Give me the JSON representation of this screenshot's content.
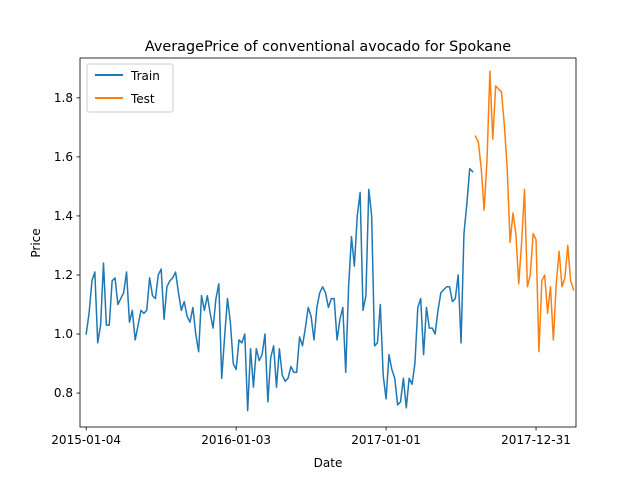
{
  "chart_data": {
    "type": "line",
    "title": "AveragePrice of conventional avocado for Spokane",
    "xlabel": "Date",
    "ylabel": "Price",
    "x_ticks": [
      "2015-01-04",
      "2016-01-03",
      "2017-01-01",
      "2017-12-31"
    ],
    "y_ticks": [
      "0.8",
      "1.0",
      "1.2",
      "1.4",
      "1.6",
      "1.8"
    ],
    "xlim": [
      "2014-12-20",
      "2018-04-07"
    ],
    "ylim": [
      0.685,
      1.935
    ],
    "grid": false,
    "legend_position": "top-left",
    "series": [
      {
        "name": "Train",
        "color": "#1f77b4",
        "points": [
          [
            "2015-01-04",
            1.0
          ],
          [
            "2015-01-11",
            1.07
          ],
          [
            "2015-01-18",
            1.18
          ],
          [
            "2015-01-25",
            1.21
          ],
          [
            "2015-02-01",
            0.97
          ],
          [
            "2015-02-08",
            1.03
          ],
          [
            "2015-02-15",
            1.24
          ],
          [
            "2015-02-22",
            1.03
          ],
          [
            "2015-03-01",
            1.03
          ],
          [
            "2015-03-08",
            1.18
          ],
          [
            "2015-03-15",
            1.19
          ],
          [
            "2015-03-22",
            1.1
          ],
          [
            "2015-03-29",
            1.12
          ],
          [
            "2015-04-05",
            1.14
          ],
          [
            "2015-04-12",
            1.21
          ],
          [
            "2015-04-19",
            1.04
          ],
          [
            "2015-04-26",
            1.08
          ],
          [
            "2015-05-03",
            0.98
          ],
          [
            "2015-05-10",
            1.03
          ],
          [
            "2015-05-17",
            1.08
          ],
          [
            "2015-05-24",
            1.07
          ],
          [
            "2015-05-31",
            1.08
          ],
          [
            "2015-06-07",
            1.19
          ],
          [
            "2015-06-14",
            1.13
          ],
          [
            "2015-06-21",
            1.12
          ],
          [
            "2015-06-28",
            1.2
          ],
          [
            "2015-07-05",
            1.22
          ],
          [
            "2015-07-12",
            1.05
          ],
          [
            "2015-07-19",
            1.16
          ],
          [
            "2015-07-26",
            1.18
          ],
          [
            "2015-08-02",
            1.19
          ],
          [
            "2015-08-09",
            1.21
          ],
          [
            "2015-08-16",
            1.14
          ],
          [
            "2015-08-23",
            1.08
          ],
          [
            "2015-08-30",
            1.11
          ],
          [
            "2015-09-06",
            1.06
          ],
          [
            "2015-09-13",
            1.04
          ],
          [
            "2015-09-20",
            1.09
          ],
          [
            "2015-09-27",
            1.0
          ],
          [
            "2015-10-04",
            0.94
          ],
          [
            "2015-10-11",
            1.13
          ],
          [
            "2015-10-18",
            1.08
          ],
          [
            "2015-10-25",
            1.13
          ],
          [
            "2015-11-01",
            1.07
          ],
          [
            "2015-11-08",
            1.02
          ],
          [
            "2015-11-15",
            1.12
          ],
          [
            "2015-11-22",
            1.17
          ],
          [
            "2015-11-29",
            0.85
          ],
          [
            "2015-12-06",
            0.99
          ],
          [
            "2015-12-13",
            1.12
          ],
          [
            "2015-12-20",
            1.04
          ],
          [
            "2015-12-27",
            0.9
          ],
          [
            "2016-01-03",
            0.88
          ],
          [
            "2016-01-10",
            0.98
          ],
          [
            "2016-01-17",
            0.97
          ],
          [
            "2016-01-24",
            1.0
          ],
          [
            "2016-01-31",
            0.74
          ],
          [
            "2016-02-07",
            0.95
          ],
          [
            "2016-02-14",
            0.82
          ],
          [
            "2016-02-21",
            0.95
          ],
          [
            "2016-02-28",
            0.91
          ],
          [
            "2016-03-06",
            0.93
          ],
          [
            "2016-03-13",
            1.0
          ],
          [
            "2016-03-20",
            0.77
          ],
          [
            "2016-03-27",
            0.92
          ],
          [
            "2016-04-03",
            0.96
          ],
          [
            "2016-04-10",
            0.82
          ],
          [
            "2016-04-17",
            0.95
          ],
          [
            "2016-04-24",
            0.86
          ],
          [
            "2016-05-01",
            0.84
          ],
          [
            "2016-05-08",
            0.85
          ],
          [
            "2016-05-15",
            0.89
          ],
          [
            "2016-05-22",
            0.87
          ],
          [
            "2016-05-29",
            0.87
          ],
          [
            "2016-06-05",
            0.99
          ],
          [
            "2016-06-12",
            0.96
          ],
          [
            "2016-06-19",
            1.02
          ],
          [
            "2016-06-26",
            1.09
          ],
          [
            "2016-07-03",
            1.06
          ],
          [
            "2016-07-10",
            0.98
          ],
          [
            "2016-07-17",
            1.09
          ],
          [
            "2016-07-24",
            1.14
          ],
          [
            "2016-07-31",
            1.16
          ],
          [
            "2016-08-07",
            1.14
          ],
          [
            "2016-08-14",
            1.09
          ],
          [
            "2016-08-21",
            1.12
          ],
          [
            "2016-08-28",
            1.12
          ],
          [
            "2016-09-04",
            0.98
          ],
          [
            "2016-09-11",
            1.05
          ],
          [
            "2016-09-18",
            1.09
          ],
          [
            "2016-09-25",
            0.87
          ],
          [
            "2016-10-02",
            1.16
          ],
          [
            "2016-10-09",
            1.33
          ],
          [
            "2016-10-16",
            1.23
          ],
          [
            "2016-10-23",
            1.4
          ],
          [
            "2016-10-30",
            1.48
          ],
          [
            "2016-11-06",
            1.08
          ],
          [
            "2016-11-13",
            1.13
          ],
          [
            "2016-11-20",
            1.49
          ],
          [
            "2016-11-27",
            1.4
          ],
          [
            "2016-12-04",
            0.96
          ],
          [
            "2016-12-11",
            0.97
          ],
          [
            "2016-12-18",
            1.1
          ],
          [
            "2016-12-25",
            0.86
          ],
          [
            "2017-01-01",
            0.78
          ],
          [
            "2017-01-08",
            0.93
          ],
          [
            "2017-01-15",
            0.88
          ],
          [
            "2017-01-22",
            0.85
          ],
          [
            "2017-01-29",
            0.76
          ],
          [
            "2017-02-05",
            0.77
          ],
          [
            "2017-02-12",
            0.85
          ],
          [
            "2017-02-19",
            0.75
          ],
          [
            "2017-02-26",
            0.85
          ],
          [
            "2017-03-05",
            0.83
          ],
          [
            "2017-03-12",
            0.9
          ],
          [
            "2017-03-19",
            1.09
          ],
          [
            "2017-03-26",
            1.12
          ],
          [
            "2017-04-02",
            0.93
          ],
          [
            "2017-04-09",
            1.09
          ],
          [
            "2017-04-16",
            1.02
          ],
          [
            "2017-04-23",
            1.02
          ],
          [
            "2017-04-30",
            1.0
          ],
          [
            "2017-05-07",
            1.08
          ],
          [
            "2017-05-14",
            1.14
          ],
          [
            "2017-05-21",
            1.15
          ],
          [
            "2017-05-28",
            1.16
          ],
          [
            "2017-06-04",
            1.16
          ],
          [
            "2017-06-11",
            1.11
          ],
          [
            "2017-06-18",
            1.12
          ],
          [
            "2017-06-25",
            1.2
          ],
          [
            "2017-07-02",
            0.97
          ],
          [
            "2017-07-09",
            1.34
          ],
          [
            "2017-07-16",
            1.44
          ],
          [
            "2017-07-23",
            1.56
          ],
          [
            "2017-07-30",
            1.55
          ]
        ]
      },
      {
        "name": "Test",
        "color": "#ff7f0e",
        "points": [
          [
            "2017-08-06",
            1.67
          ],
          [
            "2017-08-13",
            1.65
          ],
          [
            "2017-08-20",
            1.56
          ],
          [
            "2017-08-27",
            1.42
          ],
          [
            "2017-09-03",
            1.59
          ],
          [
            "2017-09-10",
            1.89
          ],
          [
            "2017-09-17",
            1.66
          ],
          [
            "2017-09-24",
            1.84
          ],
          [
            "2017-10-01",
            1.83
          ],
          [
            "2017-10-08",
            1.82
          ],
          [
            "2017-10-15",
            1.71
          ],
          [
            "2017-10-22",
            1.56
          ],
          [
            "2017-10-29",
            1.31
          ],
          [
            "2017-11-05",
            1.41
          ],
          [
            "2017-11-12",
            1.34
          ],
          [
            "2017-11-19",
            1.17
          ],
          [
            "2017-11-26",
            1.31
          ],
          [
            "2017-12-03",
            1.49
          ],
          [
            "2017-12-10",
            1.16
          ],
          [
            "2017-12-17",
            1.2
          ],
          [
            "2017-12-24",
            1.34
          ],
          [
            "2017-12-31",
            1.32
          ],
          [
            "2018-01-07",
            0.94
          ],
          [
            "2018-01-14",
            1.18
          ],
          [
            "2018-01-21",
            1.2
          ],
          [
            "2018-01-28",
            1.07
          ],
          [
            "2018-02-04",
            1.16
          ],
          [
            "2018-02-11",
            0.98
          ],
          [
            "2018-02-18",
            1.17
          ],
          [
            "2018-02-25",
            1.28
          ],
          [
            "2018-03-04",
            1.16
          ],
          [
            "2018-03-11",
            1.19
          ],
          [
            "2018-03-18",
            1.3
          ],
          [
            "2018-03-25",
            1.18
          ],
          [
            "2018-04-01",
            1.15
          ]
        ]
      }
    ]
  }
}
